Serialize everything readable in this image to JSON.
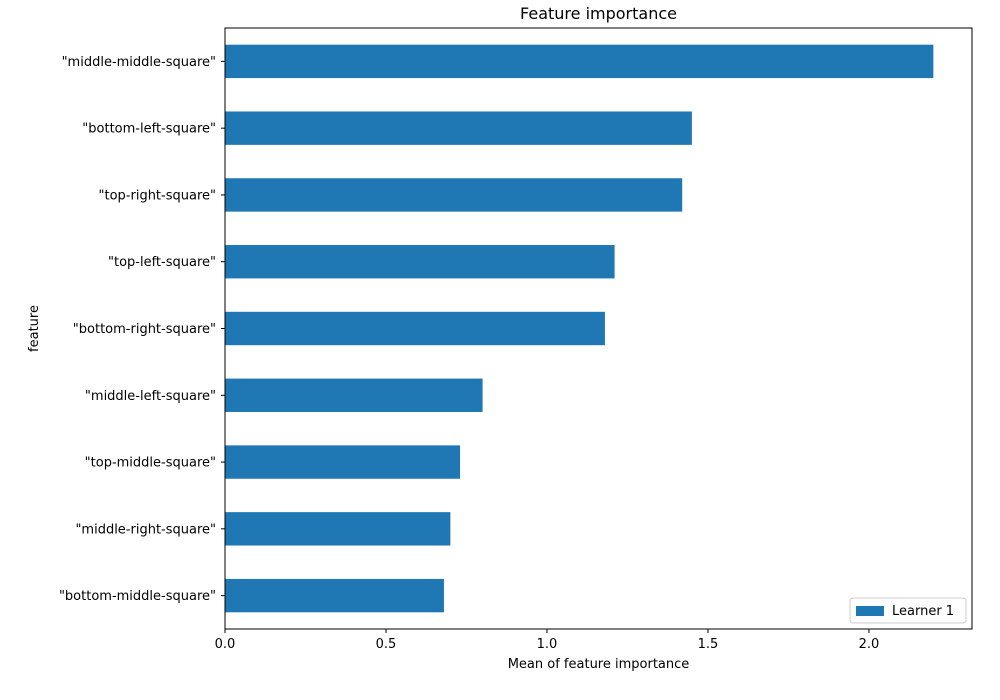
{
  "chart_data": {
    "type": "bar",
    "orientation": "horizontal",
    "title": "Feature importance",
    "xlabel": "Mean of feature importance",
    "ylabel": "feature",
    "categories": [
      "\"middle-middle-square\"",
      "\"bottom-left-square\"",
      "\"top-right-square\"",
      "\"top-left-square\"",
      "\"bottom-right-square\"",
      "\"middle-left-square\"",
      "\"top-middle-square\"",
      "\"middle-right-square\"",
      "\"bottom-middle-square\""
    ],
    "series": [
      {
        "name": "Learner 1",
        "color": "#1f77b4",
        "values": [
          2.2,
          1.45,
          1.42,
          1.21,
          1.18,
          0.8,
          0.73,
          0.7,
          0.68
        ]
      }
    ],
    "xlim": [
      0,
      2.32
    ],
    "xticks": [
      0,
      0.5,
      1.0,
      1.5,
      2.0
    ],
    "xtick_labels": [
      "0.0",
      "0.5",
      "1.0",
      "1.5",
      "2.0"
    ],
    "legend": "lower-right",
    "grid": false
  }
}
